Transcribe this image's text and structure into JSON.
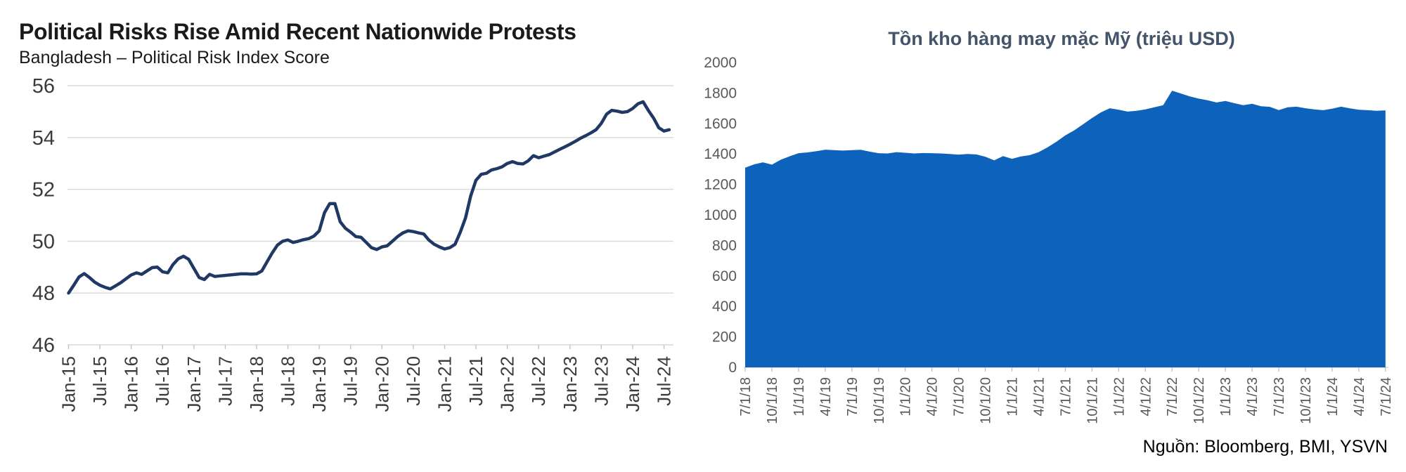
{
  "source": {
    "label": "Nguồn: Bloomberg, BMI, YSVN"
  },
  "chart_data": [
    {
      "type": "line",
      "title": "Political Risks Rise Amid Recent Nationwide Protests",
      "subtitle": "Bangladesh – Political Risk Index Score",
      "ylabel": "",
      "xlabel": "",
      "ylim": [
        46,
        56.6
      ],
      "y_ticks": [
        46,
        48,
        50,
        52,
        54,
        56
      ],
      "x_tick_labels": [
        "Jan-15",
        "Jul-15",
        "Jan-16",
        "Jul-16",
        "Jan-17",
        "Jul-17",
        "Jan-18",
        "Jul-18",
        "Jan-19",
        "Jul-19",
        "Jan-20",
        "Jul-20",
        "Jan-21",
        "Jul-21",
        "Jan-22",
        "Jul-22",
        "Jan-23",
        "Jul-23",
        "Jan-24",
        "Jul-24"
      ],
      "x_ticks_every": 6,
      "points_frequency": "monthly",
      "grid": true,
      "legend": "none",
      "line_color": "#1f3864",
      "grid_color": "#d9d9d9",
      "label_color": "#3b3b3b",
      "values": [
        48.0,
        48.3,
        48.62,
        48.75,
        48.6,
        48.42,
        48.3,
        48.22,
        48.16,
        48.28,
        48.4,
        48.55,
        48.7,
        48.78,
        48.72,
        48.85,
        48.98,
        49.0,
        48.82,
        48.78,
        49.1,
        49.32,
        49.42,
        49.3,
        48.95,
        48.6,
        48.52,
        48.72,
        48.64,
        48.66,
        48.68,
        48.7,
        48.72,
        48.74,
        48.74,
        48.73,
        48.74,
        48.85,
        49.2,
        49.55,
        49.85,
        50.0,
        50.05,
        49.95,
        50.0,
        50.06,
        50.1,
        50.2,
        50.4,
        51.1,
        51.45,
        51.45,
        50.75,
        50.5,
        50.35,
        50.18,
        50.15,
        49.95,
        49.75,
        49.68,
        49.78,
        49.82,
        50.0,
        50.18,
        50.32,
        50.4,
        50.37,
        50.32,
        50.28,
        50.04,
        49.88,
        49.78,
        49.7,
        49.75,
        49.88,
        50.35,
        50.9,
        51.75,
        52.35,
        52.58,
        52.62,
        52.75,
        52.8,
        52.87,
        53.0,
        53.07,
        53.0,
        52.98,
        53.1,
        53.3,
        53.22,
        53.28,
        53.34,
        53.44,
        53.54,
        53.64,
        53.74,
        53.85,
        53.97,
        54.07,
        54.18,
        54.3,
        54.55,
        54.9,
        55.05,
        55.02,
        54.97,
        55.0,
        55.12,
        55.3,
        55.38,
        55.05,
        54.75,
        54.38,
        54.25,
        54.3
      ]
    },
    {
      "type": "area",
      "title": "Tồn kho hàng may mặc Mỹ (triệu USD)",
      "ylabel": "",
      "xlabel": "",
      "ylim": [
        0,
        2000
      ],
      "y_ticks": [
        0,
        200,
        400,
        600,
        800,
        1000,
        1200,
        1400,
        1600,
        1800,
        2000
      ],
      "x_tick_labels": [
        "7/1/18",
        "10/1/18",
        "1/1/19",
        "4/1/19",
        "7/1/19",
        "10/1/19",
        "1/1/20",
        "4/1/20",
        "7/1/20",
        "10/1/20",
        "1/1/21",
        "4/1/21",
        "7/1/21",
        "10/1/21",
        "1/1/22",
        "4/1/22",
        "7/1/22",
        "10/1/22",
        "1/1/23",
        "4/1/23",
        "7/1/23",
        "10/1/23",
        "1/1/24",
        "4/1/24",
        "7/1/24"
      ],
      "x_ticks_every": 3,
      "points_frequency": "monthly",
      "grid": false,
      "legend": "none",
      "fill_color": "#0d63bb",
      "label_color": "#595959",
      "values": [
        1310,
        1332,
        1345,
        1330,
        1362,
        1385,
        1405,
        1410,
        1418,
        1428,
        1425,
        1422,
        1425,
        1427,
        1415,
        1405,
        1403,
        1412,
        1408,
        1403,
        1406,
        1405,
        1403,
        1400,
        1396,
        1400,
        1397,
        1382,
        1358,
        1386,
        1368,
        1384,
        1392,
        1412,
        1444,
        1480,
        1522,
        1555,
        1595,
        1636,
        1673,
        1700,
        1690,
        1678,
        1683,
        1692,
        1706,
        1720,
        1815,
        1797,
        1778,
        1763,
        1752,
        1738,
        1748,
        1733,
        1720,
        1729,
        1713,
        1709,
        1688,
        1706,
        1710,
        1700,
        1692,
        1687,
        1697,
        1710,
        1699,
        1690,
        1687,
        1683,
        1686
      ]
    }
  ]
}
